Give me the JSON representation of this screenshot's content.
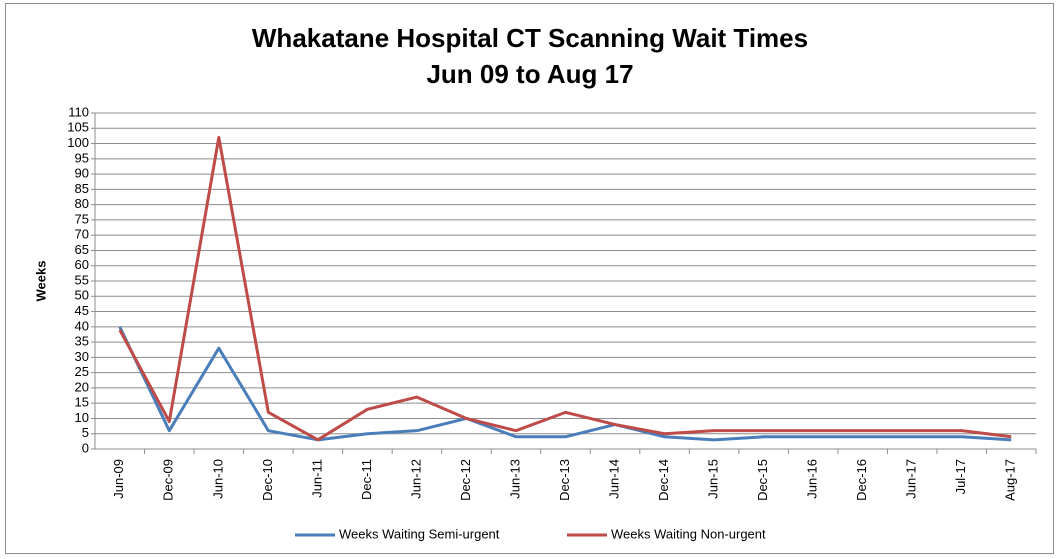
{
  "chart_data": {
    "type": "line",
    "title": "Whakatane Hospital CT Scanning Wait Times",
    "subtitle": "Jun 09 to Aug 17",
    "y_label": "Weeks",
    "categories": [
      "Jun-09",
      "Dec-09",
      "Jun-10",
      "Dec-10",
      "Jun-11",
      "Dec-11",
      "Jun-12",
      "Dec-12",
      "Jun-13",
      "Dec-13",
      "Jun-14",
      "Dec-14",
      "Jun-15",
      "Dec-15",
      "Jun-16",
      "Dec-16",
      "Jun-17",
      "Jul-17",
      "Aug-17"
    ],
    "series": [
      {
        "name": "Weeks Waiting Semi-urgent",
        "color": "#4a7ebb",
        "values": [
          40,
          6,
          33,
          6,
          3,
          5,
          6,
          10,
          4,
          4,
          8,
          4,
          3,
          4,
          4,
          4,
          4,
          4,
          3
        ]
      },
      {
        "name": "Weeks Waiting Non-urgent",
        "color": "#be4b48",
        "values": [
          39,
          9,
          102,
          12,
          3,
          13,
          17,
          10,
          6,
          12,
          8,
          5,
          6,
          6,
          6,
          6,
          6,
          6,
          4
        ]
      }
    ],
    "ylim": [
      0,
      110
    ],
    "yticks": [
      0,
      5,
      10,
      15,
      20,
      25,
      30,
      35,
      40,
      45,
      50,
      55,
      60,
      65,
      70,
      75,
      80,
      85,
      90,
      95,
      100,
      105,
      110
    ],
    "grid": true,
    "legend": "bottom"
  }
}
